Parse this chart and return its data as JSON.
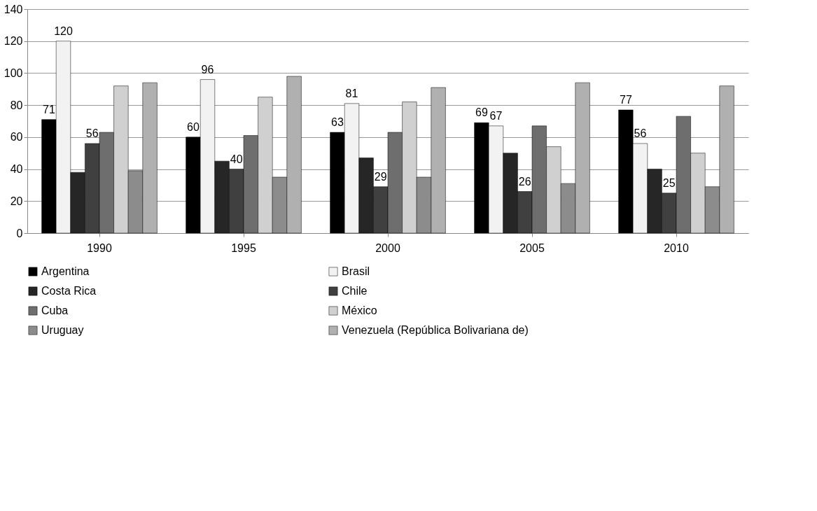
{
  "chart_data": {
    "type": "bar",
    "categories": [
      "1990",
      "1995",
      "2000",
      "2005",
      "2010"
    ],
    "series": [
      {
        "name": "Argentina",
        "color": "#000000",
        "values": [
          71,
          60,
          63,
          69,
          77
        ],
        "value_labels": [
          "71",
          "60",
          "63",
          "69",
          "77"
        ]
      },
      {
        "name": "Brasil",
        "color": "#f2f2f2",
        "values": [
          120,
          96,
          81,
          67,
          56
        ],
        "value_labels": [
          "120",
          "96",
          "81",
          "67",
          "56"
        ]
      },
      {
        "name": "Costa Rica",
        "color": "#262626",
        "values": [
          38,
          45,
          47,
          50,
          40
        ]
      },
      {
        "name": "Chile",
        "color": "#404040",
        "values": [
          56,
          40,
          29,
          26,
          25
        ],
        "value_labels": [
          "56",
          "40",
          "29",
          "26",
          "25"
        ]
      },
      {
        "name": "Cuba",
        "color": "#6e6e6e",
        "values": [
          63,
          61,
          63,
          67,
          73
        ]
      },
      {
        "name": "México",
        "color": "#d0d0d0",
        "values": [
          92,
          85,
          82,
          54,
          50
        ]
      },
      {
        "name": "Uruguay",
        "color": "#8c8c8c",
        "values": [
          39,
          35,
          35,
          31,
          29
        ]
      },
      {
        "name": "Venezuela (República Bolivariana de)",
        "color": "#b0b0b0",
        "values": [
          94,
          98,
          91,
          94,
          92
        ]
      }
    ],
    "ylim": [
      0,
      140
    ],
    "yticks": [
      0,
      20,
      40,
      60,
      80,
      100,
      120,
      140
    ],
    "grid": "y",
    "legend": "bottom"
  }
}
